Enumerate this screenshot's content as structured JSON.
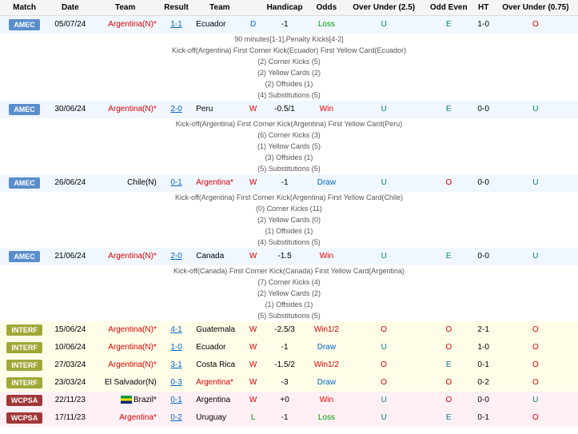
{
  "headers": [
    "Match",
    "Date",
    "Team",
    "Result",
    "Team",
    "",
    "Handicap",
    "Odds",
    "Over Under (2.5)",
    "Odd Even",
    "HT",
    "Over Under (0.75)"
  ],
  "colors": {
    "amec": "#5a8dcc",
    "interf": "#a0a838",
    "wcpsa": "#a03838",
    "red": "#d00",
    "blue": "#0066cc",
    "green": "#009900",
    "teal": "#008080"
  },
  "matches": [
    {
      "badge": "AMEC",
      "badge_class": "badge-amec",
      "row_class": "row-alt",
      "date": "05/07/24",
      "team1": "Argentina(N)*",
      "team1_color": "red",
      "result": "1-1",
      "result_color": "blue",
      "team2": "Ecuador",
      "wdl": "D",
      "wdl_color": "blue",
      "handicap": "-1",
      "odds": "Loss",
      "odds_color": "green",
      "ou25": "U",
      "ou25_color": "teal",
      "oe": "E",
      "oe_color": "teal",
      "ht": "1-0",
      "ou075": "O",
      "ou075_color": "red",
      "details": [
        "90 minutes[1-1],Penalty Kicks[4-2]",
        "Kick-off(Argentina)  First Corner Kick(Ecuador)  First Yellow Card(Ecuador)",
        "(2) Corner Kicks (5)",
        "(2) Yellow Cards (2)",
        "(2) Offsides (1)",
        "(4) Substitutions (5)"
      ]
    },
    {
      "badge": "AMEC",
      "badge_class": "badge-amec",
      "row_class": "row-alt",
      "date": "30/06/24",
      "team1": "Argentina(N)*",
      "team1_color": "red",
      "result": "2-0",
      "result_color": "blue",
      "team2": "Peru",
      "wdl": "W",
      "wdl_color": "red",
      "handicap": "-0.5/1",
      "odds": "Win",
      "odds_color": "red",
      "ou25": "U",
      "ou25_color": "teal",
      "oe": "E",
      "oe_color": "teal",
      "ht": "0-0",
      "ou075": "U",
      "ou075_color": "teal",
      "details": [
        "Kick-off(Argentina)  First Corner Kick(Argentina)  First Yellow Card(Peru)",
        "(6) Corner Kicks (3)",
        "(1) Yellow Cards (5)",
        "(3) Offsides (1)",
        "(5) Substitutions (5)"
      ]
    },
    {
      "badge": "AMEC",
      "badge_class": "badge-amec",
      "row_class": "row-alt",
      "date": "26/06/24",
      "team1": "Chile(N)",
      "team1_color": "",
      "result": "0-1",
      "result_color": "blue",
      "team2": "Argentina*",
      "team2_color": "red",
      "wdl": "W",
      "wdl_color": "red",
      "handicap": "-1",
      "odds": "Draw",
      "odds_color": "blue",
      "ou25": "U",
      "ou25_color": "teal",
      "oe": "O",
      "oe_color": "red",
      "ht": "0-0",
      "ou075": "U",
      "ou075_color": "teal",
      "details": [
        "Kick-off(Argentina)  First Corner Kick(Argentina)  First Yellow Card(Chile)",
        "(0) Corner Kicks (11)",
        "(2) Yellow Cards (0)",
        "(1) Offsides (1)",
        "(4) Substitutions (5)"
      ]
    },
    {
      "badge": "AMEC",
      "badge_class": "badge-amec",
      "row_class": "row-alt",
      "date": "21/06/24",
      "team1": "Argentina(N)*",
      "team1_color": "red",
      "result": "2-0",
      "result_color": "blue",
      "team2": "Canada",
      "wdl": "W",
      "wdl_color": "red",
      "handicap": "-1.5",
      "odds": "Win",
      "odds_color": "red",
      "ou25": "U",
      "ou25_color": "teal",
      "oe": "E",
      "oe_color": "teal",
      "ht": "0-0",
      "ou075": "U",
      "ou075_color": "teal",
      "details": [
        "Kick-off(Canada)  First Corner Kick(Canada)  First Yellow Card(Argentina)",
        "(7) Corner Kicks (4)",
        "(2) Yellow Cards (2)",
        "(1) Offsides (1)",
        "(5) Substitutions (5)"
      ]
    },
    {
      "badge": "INTERF",
      "badge_class": "badge-interf",
      "row_class": "row-yellow",
      "date": "15/06/24",
      "team1": "Argentina(N)*",
      "team1_color": "red",
      "result": "4-1",
      "result_color": "blue",
      "team2": "Guatemala",
      "wdl": "W",
      "wdl_color": "red",
      "handicap": "-2.5/3",
      "odds": "Win1/2",
      "odds_color": "red",
      "ou25": "O",
      "ou25_color": "red",
      "oe": "O",
      "oe_color": "red",
      "ht": "2-1",
      "ou075": "O",
      "ou075_color": "red"
    },
    {
      "badge": "INTERF",
      "badge_class": "badge-interf",
      "row_class": "row-yellow",
      "date": "10/06/24",
      "team1": "Argentina(N)*",
      "team1_color": "red",
      "result": "1-0",
      "result_color": "blue",
      "team2": "Ecuador",
      "wdl": "W",
      "wdl_color": "red",
      "handicap": "-1",
      "odds": "Draw",
      "odds_color": "blue",
      "ou25": "U",
      "ou25_color": "teal",
      "oe": "O",
      "oe_color": "red",
      "ht": "1-0",
      "ou075": "O",
      "ou075_color": "red"
    },
    {
      "badge": "INTERF",
      "badge_class": "badge-interf",
      "row_class": "row-yellow",
      "date": "27/03/24",
      "team1": "Argentina(N)*",
      "team1_color": "red",
      "result": "3-1",
      "result_color": "blue",
      "team2": "Costa Rica",
      "wdl": "W",
      "wdl_color": "red",
      "handicap": "-1.5/2",
      "odds": "Win1/2",
      "odds_color": "red",
      "ou25": "O",
      "ou25_color": "red",
      "oe": "E",
      "oe_color": "teal",
      "ht": "0-1",
      "ou075": "O",
      "ou075_color": "red"
    },
    {
      "badge": "INTERF",
      "badge_class": "badge-interf",
      "row_class": "row-yellow",
      "date": "23/03/24",
      "team1": "El Salvador(N)",
      "team1_color": "",
      "result": "0-3",
      "result_color": "blue",
      "team2": "Argentina*",
      "team2_color": "red",
      "wdl": "W",
      "wdl_color": "red",
      "handicap": "-3",
      "odds": "Draw",
      "odds_color": "blue",
      "ou25": "O",
      "ou25_color": "red",
      "oe": "O",
      "oe_color": "red",
      "ht": "0-2",
      "ou075": "O",
      "ou075_color": "red"
    },
    {
      "badge": "WCPSA",
      "badge_class": "badge-wcpsa",
      "row_class": "row-pink",
      "date": "22/11/23",
      "team1": "Brazil*",
      "team1_color": "",
      "team1_flag": true,
      "result": "0-1",
      "result_color": "blue",
      "team2": "Argentina",
      "wdl": "W",
      "wdl_color": "red",
      "handicap": "+0",
      "odds": "Win",
      "odds_color": "red",
      "ou25": "U",
      "ou25_color": "teal",
      "oe": "O",
      "oe_color": "red",
      "ht": "0-0",
      "ou075": "U",
      "ou075_color": "teal"
    },
    {
      "badge": "WCPSA",
      "badge_class": "badge-wcpsa",
      "row_class": "row-pink",
      "date": "17/11/23",
      "team1": "Argentina*",
      "team1_color": "red",
      "result": "0-2",
      "result_color": "blue",
      "team2": "Uruguay",
      "wdl": "L",
      "wdl_color": "green",
      "handicap": "-1",
      "odds": "Loss",
      "odds_color": "green",
      "ou25": "U",
      "ou25_color": "teal",
      "oe": "E",
      "oe_color": "teal",
      "ht": "0-1",
      "ou075": "O",
      "ou075_color": "red"
    }
  ]
}
